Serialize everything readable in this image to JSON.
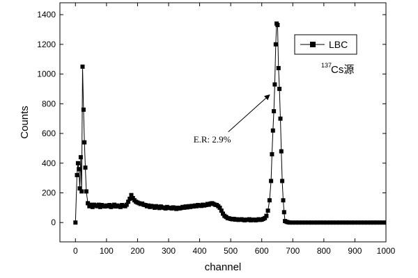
{
  "chart_data": {
    "type": "line",
    "title": "",
    "xlabel": "channel",
    "ylabel": "Counts",
    "xlim": [
      -50,
      1000
    ],
    "ylim": [
      -130,
      1480
    ],
    "xticks": [
      0,
      100,
      200,
      300,
      400,
      500,
      600,
      700,
      800,
      900,
      1000
    ],
    "yticks": [
      0,
      200,
      400,
      600,
      800,
      1000,
      1200,
      1400
    ],
    "grid": false,
    "legend_position": "top-right",
    "series": [
      {
        "name": "LBC",
        "marker": "square",
        "color": "#000000",
        "x": [
          0,
          5,
          8,
          11,
          14,
          17,
          20,
          23,
          26,
          29,
          32,
          35,
          40,
          45,
          50,
          55,
          60,
          65,
          70,
          75,
          80,
          85,
          90,
          95,
          100,
          105,
          110,
          115,
          120,
          125,
          130,
          135,
          140,
          145,
          150,
          155,
          160,
          165,
          170,
          175,
          180,
          185,
          190,
          195,
          200,
          205,
          210,
          215,
          220,
          225,
          230,
          235,
          240,
          245,
          250,
          255,
          260,
          265,
          270,
          275,
          280,
          285,
          290,
          295,
          300,
          305,
          310,
          315,
          320,
          325,
          330,
          335,
          340,
          345,
          350,
          355,
          360,
          365,
          370,
          375,
          380,
          385,
          390,
          395,
          400,
          405,
          410,
          415,
          420,
          425,
          430,
          435,
          440,
          445,
          450,
          455,
          460,
          465,
          470,
          475,
          480,
          485,
          490,
          495,
          500,
          505,
          510,
          515,
          520,
          525,
          530,
          535,
          540,
          545,
          550,
          555,
          560,
          565,
          570,
          575,
          580,
          585,
          590,
          595,
          600,
          605,
          610,
          615,
          620,
          625,
          630,
          633,
          636,
          639,
          642,
          645,
          648,
          651,
          654,
          657,
          660,
          663,
          666,
          669,
          672,
          675,
          680,
          685,
          690,
          700,
          710,
          720,
          730,
          740,
          750,
          760,
          770,
          780,
          790,
          800,
          810,
          820,
          830,
          840,
          850,
          860,
          870,
          880,
          890,
          900,
          910,
          920,
          930,
          940,
          950,
          960,
          970,
          980,
          990,
          1000
        ],
        "y": [
          0,
          320,
          400,
          360,
          230,
          440,
          210,
          1050,
          760,
          540,
          370,
          210,
          130,
          110,
          120,
          105,
          120,
          115,
          110,
          120,
          105,
          118,
          112,
          108,
          115,
          110,
          118,
          105,
          112,
          120,
          108,
          115,
          110,
          105,
          118,
          112,
          110,
          120,
          140,
          160,
          185,
          165,
          150,
          140,
          135,
          130,
          125,
          128,
          120,
          118,
          110,
          115,
          105,
          112,
          108,
          100,
          110,
          105,
          98,
          108,
          102,
          100,
          95,
          105,
          98,
          100,
          95,
          102,
          98,
          92,
          100,
          95,
          98,
          105,
          100,
          108,
          102,
          110,
          105,
          112,
          108,
          115,
          110,
          118,
          115,
          112,
          120,
          115,
          118,
          125,
          120,
          128,
          130,
          125,
          120,
          118,
          110,
          100,
          80,
          60,
          45,
          38,
          30,
          28,
          25,
          22,
          25,
          20,
          22,
          18,
          20,
          22,
          18,
          15,
          20,
          18,
          22,
          15,
          18,
          20,
          15,
          18,
          22,
          18,
          20,
          25,
          30,
          45,
          80,
          150,
          280,
          460,
          620,
          750,
          930,
          1200,
          1340,
          1330,
          1040,
          900,
          700,
          480,
          280,
          150,
          70,
          10,
          5,
          2,
          0,
          0,
          0,
          0,
          0,
          0,
          0,
          0,
          0,
          0,
          0,
          0,
          0,
          0,
          0,
          0,
          0,
          0,
          0,
          0,
          0,
          0,
          0,
          0,
          0,
          0,
          0,
          0,
          0,
          0,
          0,
          0
        ]
      }
    ],
    "annotations": [
      {
        "text": "E.R: 2.9%",
        "at": [
          380,
          540
        ],
        "arrow_to": [
          625,
          860
        ]
      }
    ],
    "source_label": {
      "superscript": "137",
      "main": "Cs源"
    }
  }
}
